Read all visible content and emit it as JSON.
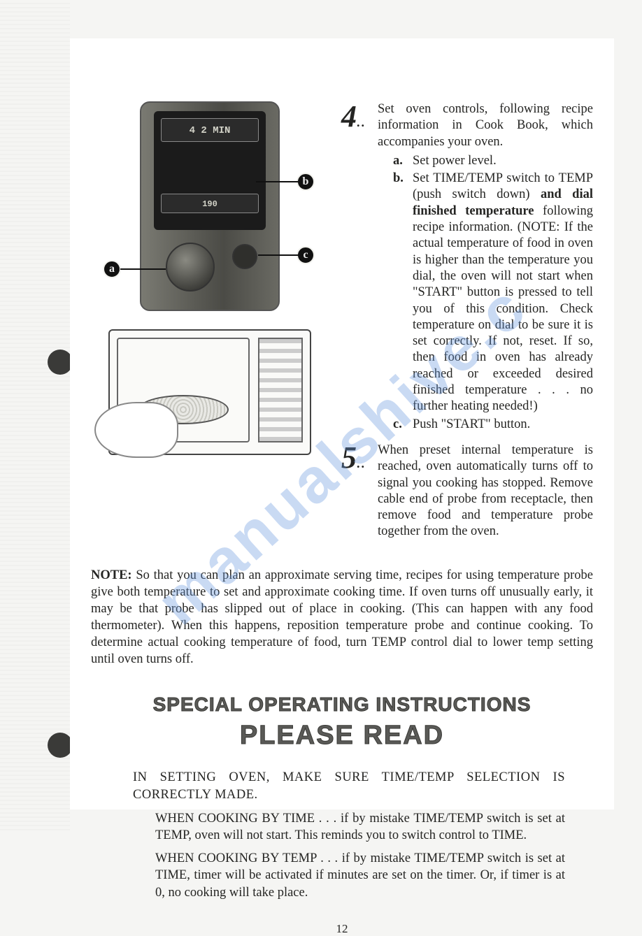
{
  "page_number": "12",
  "watermark": "manualshive.c",
  "panel": {
    "readout_top": "4 2 MIN",
    "readout_bottom": "190"
  },
  "callouts": {
    "a": "a",
    "b": "b",
    "c": "c"
  },
  "step4": {
    "number": "4",
    "dots": "..",
    "intro": "Set oven controls, following recipe information in Cook Book, which accompanies your oven.",
    "a_marker": "a.",
    "a_text": "Set power level.",
    "b_marker": "b.",
    "b_pre": "Set TIME/TEMP switch to TEMP (push switch down) ",
    "b_bold": "and dial finished temperature",
    "b_post": " following recipe information. (NOTE: If the actual temperature of food in oven is higher than the temperature you dial, the oven will not start when \"START\" button is pressed to tell you of this condition. Check temperature on dial to be sure it is set correctly. If not, reset. If so, then food in oven has already reached or exceeded desired finished temperature . . . no further heating needed!)",
    "c_marker": "c.",
    "c_text": "Push \"START\" button."
  },
  "step5": {
    "number": "5",
    "dots": "..",
    "text": "When preset internal temperature is reached, oven automatically turns off to signal you cooking has stopped. Remove cable end of probe from receptacle, then remove food and temperature probe together from the oven."
  },
  "note": {
    "label": "NOTE:",
    "text": "So that you can plan an approximate serving time, recipes for using temperature probe give both temperature to set and approximate cooking time. If oven turns off unusually early, it may be that probe has slipped out of place in cooking. (This can happen with any food thermometer). When this happens, reposition temperature probe and continue cooking. To determine actual cooking temperature of food, turn TEMP control dial to lower temp setting until oven turns off."
  },
  "special": {
    "heading1": "SPECIAL OPERATING INSTRUCTIONS",
    "heading2": "PLEASE READ",
    "lead": "IN SETTING OVEN, MAKE SURE TIME/TEMP SELECTION IS CORRECTLY MADE.",
    "p1": "WHEN COOKING BY TIME . . . if by mistake TIME/TEMP switch is set at TEMP, oven will not start. This reminds you to switch control to TIME.",
    "p2": "WHEN COOKING BY TEMP . . . if by mistake TIME/TEMP switch is set at TIME, timer will be activated if minutes are set on the timer. Or, if timer is at 0, no cooking will take place."
  }
}
